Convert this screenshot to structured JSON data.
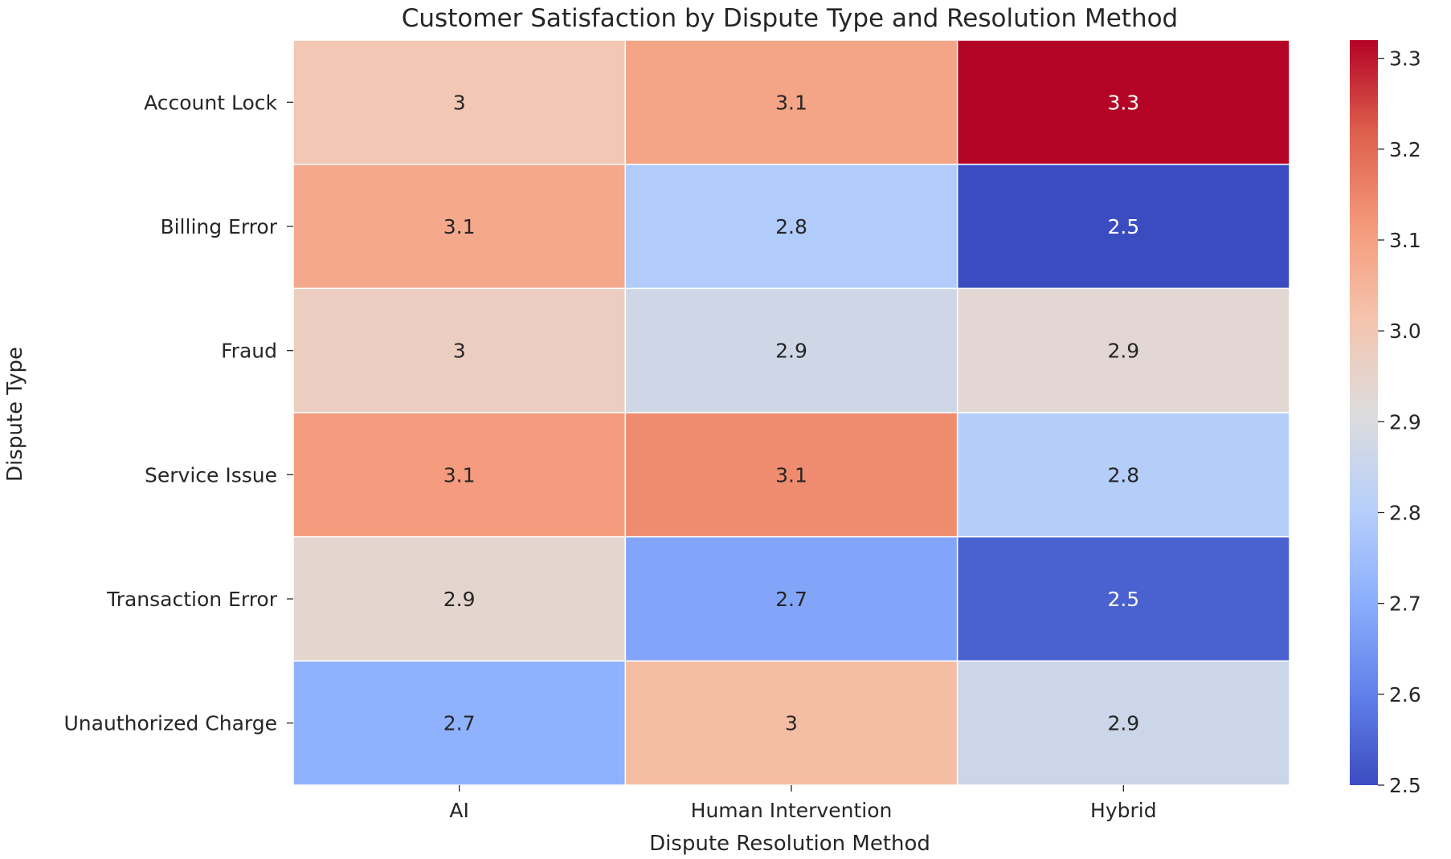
{
  "chart_data": {
    "type": "heatmap",
    "title": "Customer Satisfaction by Dispute Type and Resolution Method",
    "xlabel": "Dispute Resolution Method",
    "ylabel": "Dispute Type",
    "x_categories": [
      "AI",
      "Human Intervention",
      "Hybrid"
    ],
    "y_categories": [
      "Account Lock",
      "Billing Error",
      "Fraud",
      "Service Issue",
      "Transaction Error",
      "Unauthorized Charge"
    ],
    "values": [
      [
        3.0,
        3.09,
        3.32
      ],
      [
        3.08,
        2.79,
        2.5
      ],
      [
        2.97,
        2.87,
        2.93
      ],
      [
        3.11,
        3.14,
        2.8
      ],
      [
        2.94,
        2.68,
        2.54
      ],
      [
        2.71,
        3.03,
        2.86
      ]
    ],
    "cell_labels": [
      [
        "3",
        "3.1",
        "3.3"
      ],
      [
        "3.1",
        "2.8",
        "2.5"
      ],
      [
        "3",
        "2.9",
        "2.9"
      ],
      [
        "3.1",
        "3.1",
        "2.8"
      ],
      [
        "2.9",
        "2.7",
        "2.5"
      ],
      [
        "2.7",
        "3",
        "2.9"
      ]
    ],
    "colormap": "coolwarm",
    "color_range": [
      2.5,
      3.32
    ],
    "colorbar_ticks": [
      "2.5",
      "2.6",
      "2.7",
      "2.8",
      "2.9",
      "3.0",
      "3.1",
      "3.2",
      "3.3"
    ],
    "colorbar_tick_values": [
      2.5,
      2.6,
      2.7,
      2.8,
      2.9,
      3.0,
      3.1,
      3.2,
      3.3
    ],
    "grid": true
  }
}
